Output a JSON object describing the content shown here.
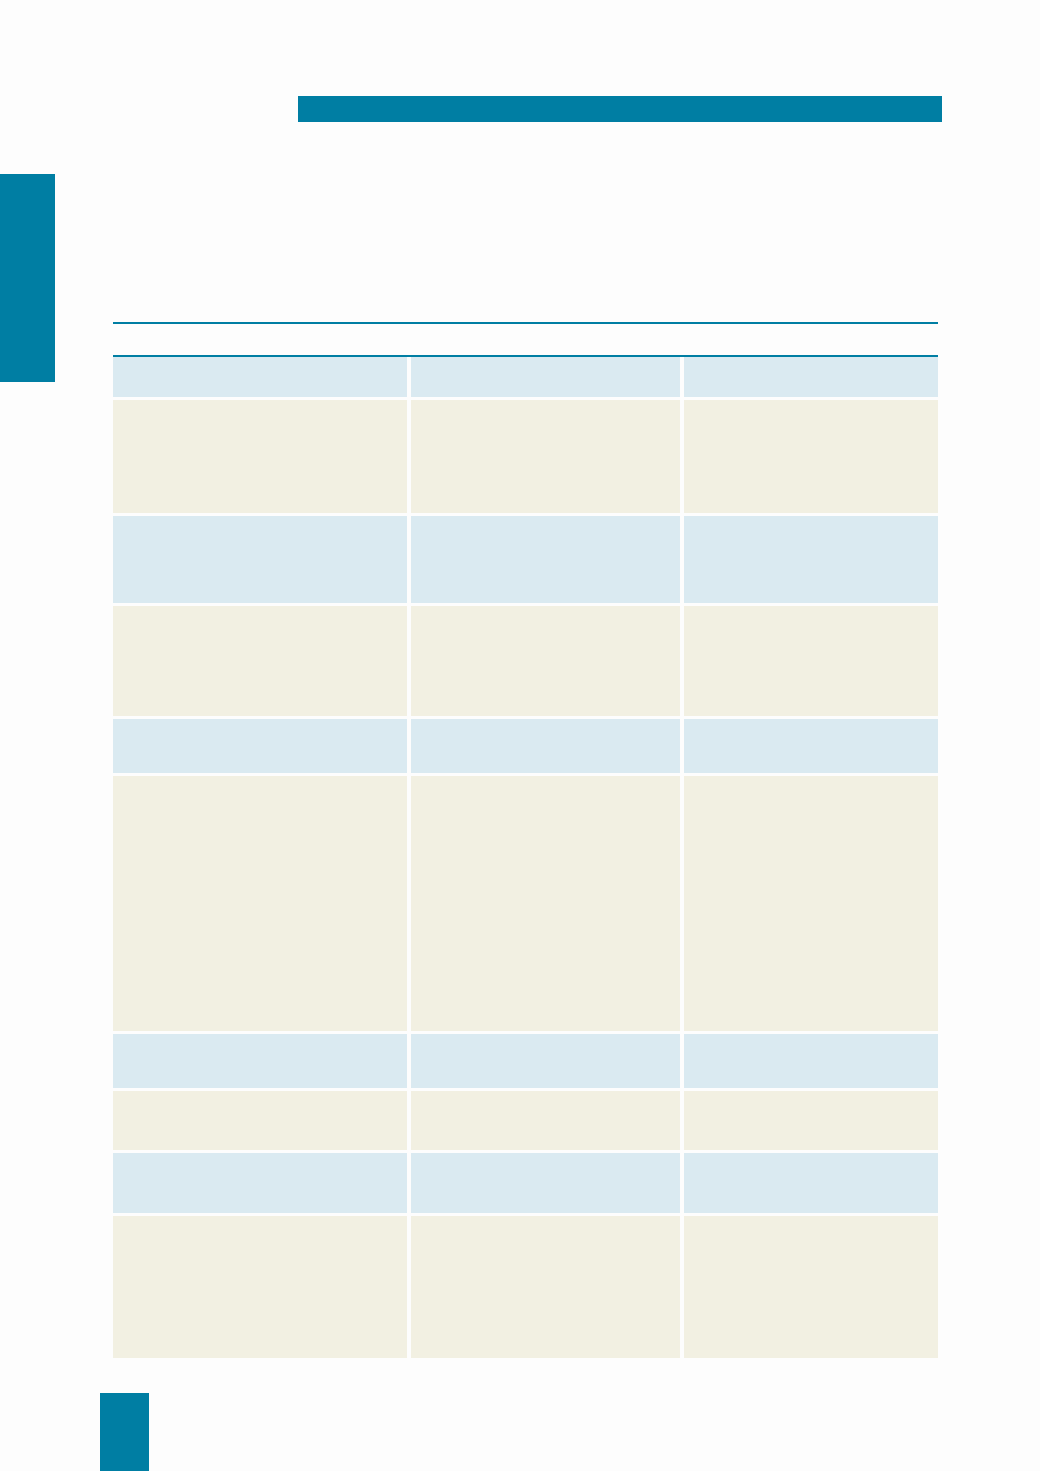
{
  "colors": {
    "accent": "#007ea3",
    "row_blue": "#daeaf1",
    "row_cream": "#f2f0e2"
  },
  "table": {
    "columns": 3,
    "rows": [
      {
        "style": "blue",
        "cells": [
          "",
          "",
          ""
        ]
      },
      {
        "style": "cream",
        "cells": [
          "",
          "",
          ""
        ]
      },
      {
        "style": "blue",
        "cells": [
          "",
          "",
          ""
        ]
      },
      {
        "style": "cream",
        "cells": [
          "",
          "",
          ""
        ]
      },
      {
        "style": "blue",
        "cells": [
          "",
          "",
          ""
        ]
      },
      {
        "style": "cream",
        "cells": [
          "",
          "",
          ""
        ]
      },
      {
        "style": "blue",
        "cells": [
          "",
          "",
          ""
        ]
      },
      {
        "style": "cream",
        "cells": [
          "",
          "",
          ""
        ]
      },
      {
        "style": "blue",
        "cells": [
          "",
          "",
          ""
        ]
      },
      {
        "style": "cream",
        "cells": [
          "",
          "",
          ""
        ]
      }
    ]
  }
}
